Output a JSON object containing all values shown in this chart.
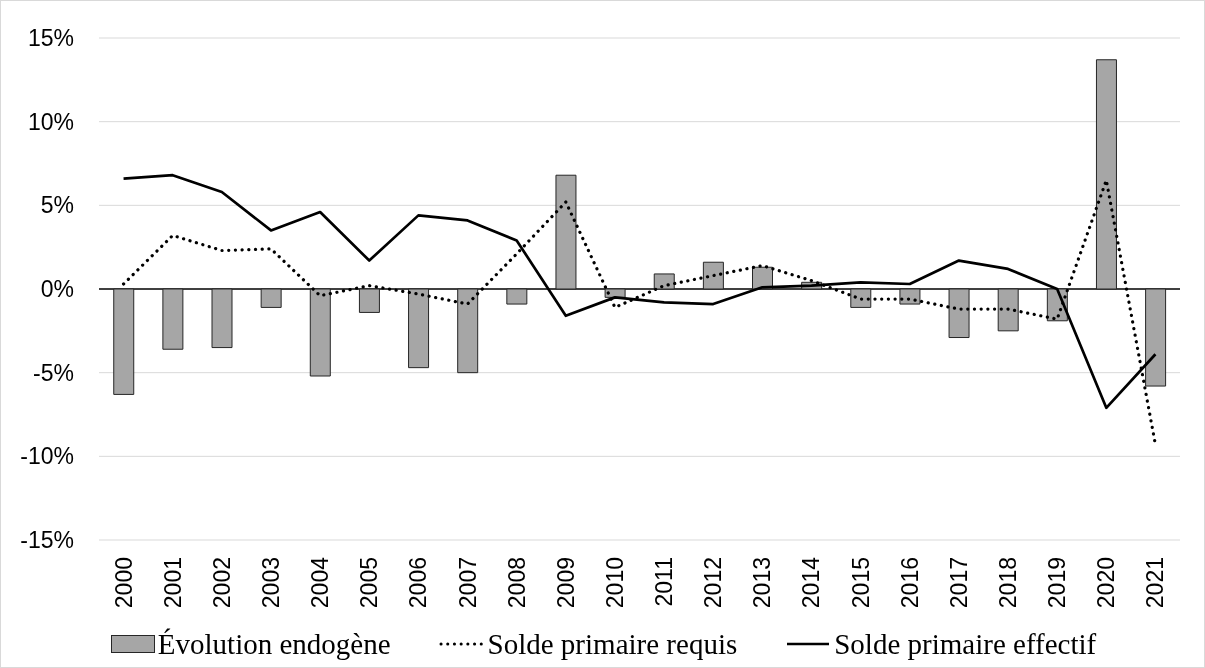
{
  "chart_data": {
    "type": "bar",
    "categories": [
      "2000",
      "2001",
      "2002",
      "2003",
      "2004",
      "2005",
      "2006",
      "2007",
      "2008",
      "2009",
      "2010",
      "2011",
      "2012",
      "2013",
      "2014",
      "2015",
      "2016",
      "2017",
      "2018",
      "2019",
      "2020",
      "2021"
    ],
    "series": [
      {
        "name": "Évolution endogène",
        "color": "#a6a6a6",
        "values": [
          -6.3,
          -3.6,
          -3.5,
          -1.1,
          -5.2,
          -1.4,
          -4.7,
          -5.0,
          -0.9,
          6.8,
          -0.5,
          0.9,
          1.6,
          1.3,
          0.4,
          -1.1,
          -0.9,
          -2.9,
          -2.5,
          -1.9,
          13.7,
          -5.8
        ]
      },
      {
        "name": "Solde primaire requis",
        "type": "line",
        "line_style": "dotted",
        "color": "#000000",
        "values": [
          0.3,
          3.2,
          2.3,
          2.4,
          -0.4,
          0.2,
          -0.3,
          -0.9,
          2.1,
          5.2,
          -1.1,
          0.2,
          0.8,
          1.4,
          0.5,
          -0.6,
          -0.6,
          -1.2,
          -1.2,
          -1.8,
          6.5,
          -9.3
        ]
      },
      {
        "name": "Solde primaire effectif",
        "type": "line",
        "line_style": "solid",
        "color": "#000000",
        "values": [
          6.6,
          6.8,
          5.8,
          3.5,
          4.6,
          1.7,
          4.4,
          4.1,
          2.9,
          -1.6,
          -0.5,
          -0.8,
          -0.9,
          0.1,
          0.2,
          0.4,
          0.3,
          1.7,
          1.2,
          0.0,
          -7.1,
          -3.9
        ]
      }
    ],
    "ylim": [
      -15,
      15
    ],
    "yticks": [
      {
        "value": -15,
        "label": "-15%"
      },
      {
        "value": -10,
        "label": "-10%"
      },
      {
        "value": -5,
        "label": "-5%"
      },
      {
        "value": 0,
        "label": "0%"
      },
      {
        "value": 5,
        "label": "5%"
      },
      {
        "value": 10,
        "label": "10%"
      },
      {
        "value": 15,
        "label": "15%"
      }
    ],
    "grid": "y",
    "legend": "bottom",
    "marker": "none"
  }
}
